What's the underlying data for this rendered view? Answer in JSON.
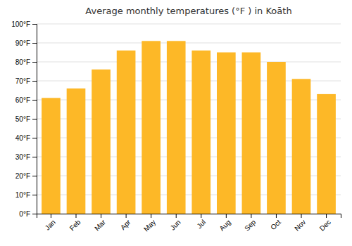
{
  "chart_data": {
    "type": "bar",
    "title": "Average monthly temperatures (°F ) in Koāth",
    "categories": [
      "Jan",
      "Feb",
      "Mar",
      "Apr",
      "May",
      "Jun",
      "Jul",
      "Aug",
      "Sep",
      "Oct",
      "Nov",
      "Dec"
    ],
    "values": [
      61,
      66,
      76,
      86,
      91,
      91,
      86,
      85,
      85,
      80,
      71,
      63
    ],
    "color": "#FDB827",
    "ylim": [
      0,
      100
    ],
    "yticks": [
      {
        "value": 0,
        "label": "0°F"
      },
      {
        "value": 10,
        "label": "10°F"
      },
      {
        "value": 20,
        "label": "20°F"
      },
      {
        "value": 30,
        "label": "30°F"
      },
      {
        "value": 40,
        "label": "40°F"
      },
      {
        "value": 50,
        "label": "50°F"
      },
      {
        "value": 60,
        "label": "60°F"
      },
      {
        "value": 70,
        "label": "70°F"
      },
      {
        "value": 80,
        "label": "80°F"
      },
      {
        "value": 90,
        "label": "90°F"
      },
      {
        "value": 100,
        "label": "100°F"
      }
    ],
    "grid": true
  }
}
